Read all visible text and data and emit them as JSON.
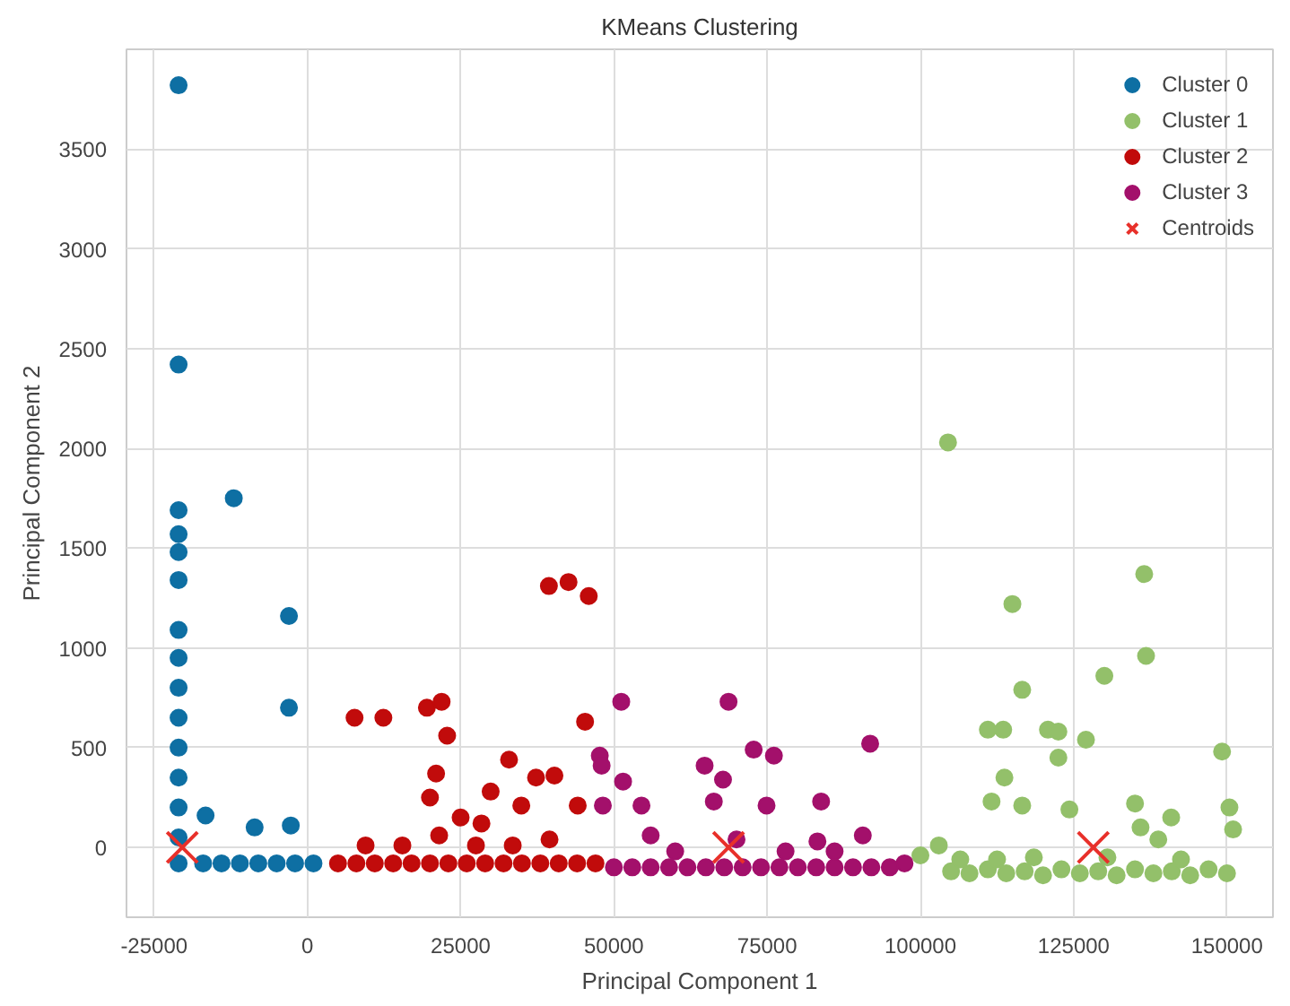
{
  "chart_data": {
    "type": "scatter",
    "title": "KMeans Clustering",
    "xlabel": "Principal Component 1",
    "ylabel": "Principal Component 2",
    "xlim": [
      -29500,
      157500
    ],
    "ylim": [
      -350,
      4000
    ],
    "xticks": [
      -25000,
      0,
      25000,
      50000,
      75000,
      100000,
      125000,
      150000
    ],
    "yticks": [
      0,
      500,
      1000,
      1500,
      2000,
      2500,
      3000,
      3500
    ],
    "grid": true,
    "legend": "top right",
    "marker": "circle",
    "series": [
      {
        "name": "Cluster 0",
        "color": "#0e6fa3",
        "x": [
          -21000,
          -21000,
          -21000,
          -21000,
          -21000,
          -21000,
          -21000,
          -21000,
          -21000,
          -21000,
          -21000,
          -21000,
          -21000,
          -21000,
          -21000,
          -12000,
          -3000,
          -3000,
          -16600,
          -8600,
          -2700,
          -17000,
          -14000,
          -11000,
          -8000,
          -5000,
          -2000,
          1000
        ],
        "values": [
          3820,
          2420,
          1690,
          1570,
          1480,
          1340,
          1090,
          950,
          800,
          650,
          500,
          350,
          200,
          50,
          -80,
          1750,
          1160,
          700,
          160,
          100,
          110,
          -80,
          -80,
          -80,
          -80,
          -80,
          -80,
          -80
        ]
      },
      {
        "name": "Cluster 1",
        "color": "#93c06a",
        "x": [
          104500,
          136500,
          115000,
          136800,
          130000,
          116600,
          111000,
          113500,
          120800,
          122500,
          127000,
          122500,
          149200,
          113700,
          111600,
          116600,
          124300,
          135000,
          140900,
          150400,
          151000,
          135900,
          138800,
          103000,
          100000,
          105000,
          108000,
          111000,
          114000,
          117000,
          120000,
          123000,
          126000,
          129000,
          132000,
          135000,
          138000,
          141000,
          144000,
          147000,
          150000,
          106500,
          112500,
          118500,
          130500,
          142500
        ],
        "values": [
          2030,
          1370,
          1220,
          960,
          860,
          790,
          590,
          590,
          590,
          580,
          540,
          450,
          480,
          350,
          230,
          210,
          190,
          220,
          150,
          200,
          90,
          100,
          40,
          10,
          -40,
          -120,
          -130,
          -110,
          -130,
          -120,
          -140,
          -110,
          -130,
          -120,
          -140,
          -110,
          -130,
          -120,
          -140,
          -110,
          -130,
          -60,
          -60,
          -50,
          -50,
          -60
        ]
      },
      {
        "name": "Cluster 2",
        "color": "#c10b0b",
        "x": [
          7700,
          12400,
          19500,
          21900,
          22800,
          21000,
          32900,
          29900,
          37300,
          40300,
          39400,
          42600,
          45900,
          45300,
          34900,
          44100,
          28400,
          20000,
          25000,
          5000,
          8000,
          11000,
          14000,
          17000,
          20000,
          23000,
          26000,
          29000,
          32000,
          35000,
          38000,
          41000,
          44000,
          47000,
          9500,
          15500,
          21500,
          27500,
          33500,
          39500
        ],
        "values": [
          650,
          650,
          700,
          730,
          560,
          370,
          440,
          280,
          350,
          360,
          1310,
          1330,
          1260,
          630,
          210,
          210,
          120,
          250,
          150,
          -80,
          -80,
          -80,
          -80,
          -80,
          -80,
          -80,
          -80,
          -80,
          -80,
          -80,
          -80,
          -80,
          -80,
          -80,
          10,
          10,
          60,
          10,
          10,
          40
        ]
      },
      {
        "name": "Cluster 3",
        "color": "#a3106b",
        "x": [
          51200,
          68700,
          47700,
          48000,
          51500,
          48200,
          54500,
          72800,
          76100,
          64800,
          67800,
          66300,
          74900,
          91800,
          83800,
          90600,
          83200,
          97400,
          50000,
          53000,
          56000,
          59000,
          62000,
          65000,
          68000,
          71000,
          74000,
          77000,
          80000,
          83000,
          86000,
          89000,
          92000,
          95000,
          56000,
          60000,
          70000,
          78000,
          86000
        ],
        "values": [
          730,
          730,
          460,
          410,
          330,
          210,
          210,
          490,
          460,
          410,
          340,
          230,
          210,
          520,
          230,
          60,
          30,
          -80,
          -100,
          -100,
          -100,
          -100,
          -100,
          -100,
          -100,
          -100,
          -100,
          -100,
          -100,
          -100,
          -100,
          -100,
          -100,
          -100,
          60,
          -20,
          40,
          -20,
          -20
        ]
      },
      {
        "name": "Centroids",
        "color": "#e8302a",
        "marker": "cross",
        "x": [
          -20400,
          68700,
          128200
        ],
        "values": [
          0,
          0,
          0
        ]
      }
    ]
  }
}
